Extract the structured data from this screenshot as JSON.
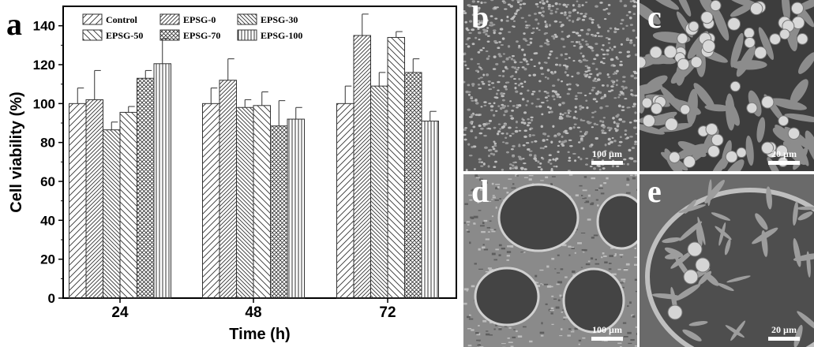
{
  "chart_data": {
    "type": "bar",
    "panel_label": "a",
    "xlabel": "Time (h)",
    "ylabel": "Cell viability (%)",
    "ylim": [
      0,
      150
    ],
    "yticks": [
      0,
      20,
      40,
      60,
      80,
      100,
      120,
      140
    ],
    "categories": [
      "24",
      "48",
      "72"
    ],
    "legend_position": "top",
    "error_bars": true,
    "series": [
      {
        "name": "Control",
        "values": [
          100,
          100,
          100
        ],
        "errors": [
          8,
          8,
          9
        ],
        "pattern": "diag-right-sparse"
      },
      {
        "name": "EPSG-0",
        "values": [
          102,
          112,
          135
        ],
        "errors": [
          15,
          11,
          11
        ],
        "pattern": "diag-right"
      },
      {
        "name": "EPSG-30",
        "values": [
          86.5,
          98,
          109
        ],
        "errors": [
          4,
          4,
          7
        ],
        "pattern": "diag-left"
      },
      {
        "name": "EPSG-50",
        "values": [
          95.5,
          99,
          134
        ],
        "errors": [
          3,
          7,
          3
        ],
        "pattern": "diag-left-sparse"
      },
      {
        "name": "EPSG-70",
        "values": [
          113,
          88.5,
          116
        ],
        "errors": [
          4,
          13,
          7
        ],
        "pattern": "crosshatch"
      },
      {
        "name": "EPSG-100",
        "values": [
          120.5,
          92,
          91
        ],
        "errors": [
          13,
          6,
          5
        ],
        "pattern": "vertical"
      }
    ]
  },
  "images": [
    {
      "label": "b",
      "scale": "100 µm"
    },
    {
      "label": "c",
      "scale": "20 µm"
    },
    {
      "label": "d",
      "scale": "100 µm"
    },
    {
      "label": "e",
      "scale": "20 µm"
    }
  ]
}
